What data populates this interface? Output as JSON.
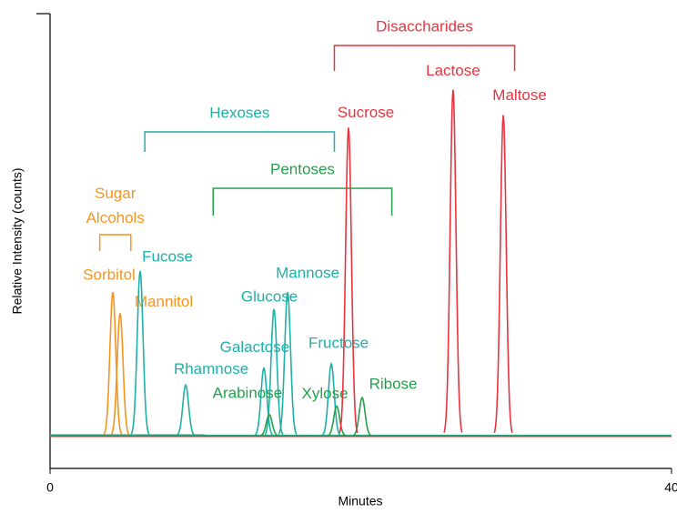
{
  "chart_data": {
    "type": "chromatogram",
    "x_label": "Minutes",
    "y_label": "Relative Intensity (counts)",
    "xlim": [
      0,
      40
    ],
    "xticks": [
      0,
      40
    ],
    "ylim": [
      0,
      100
    ],
    "series": [
      {
        "name": "Sugar Alcohols",
        "color": "#f7941d",
        "labels": [
          "Sorbitol",
          "Mannitol"
        ],
        "x": [
          4.04,
          4.51
        ],
        "values": [
          34,
          29
        ],
        "range": [
          3.2,
          5.2
        ]
      },
      {
        "name": "Hexoses",
        "color": "#1fb0a8",
        "labels": [
          "Fucose",
          "Rhamnose",
          "Galactose",
          "Glucose",
          "Mannose",
          "Fructose"
        ],
        "x": [
          5.8,
          8.73,
          13.76,
          14.41,
          15.29,
          18.1
        ],
        "values": [
          39,
          12,
          16,
          30,
          34,
          17
        ],
        "range": [
          6.1,
          18.3
        ]
      },
      {
        "name": "Pentoses",
        "color": "#23a04b",
        "labels": [
          "Arabinose",
          "Xylose",
          "Ribose"
        ],
        "x": [
          14.11,
          18.45,
          20.09
        ],
        "values": [
          5,
          7,
          9
        ],
        "range": [
          10.5,
          22.0
        ]
      },
      {
        "name": "Disaccharides",
        "color": "#e8343f",
        "labels": [
          "Sucrose",
          "Lactose",
          "Maltose"
        ],
        "x": [
          19.21,
          25.94,
          29.17
        ],
        "values": [
          73,
          82,
          76
        ],
        "range": [
          18.3,
          29.9
        ]
      }
    ]
  }
}
